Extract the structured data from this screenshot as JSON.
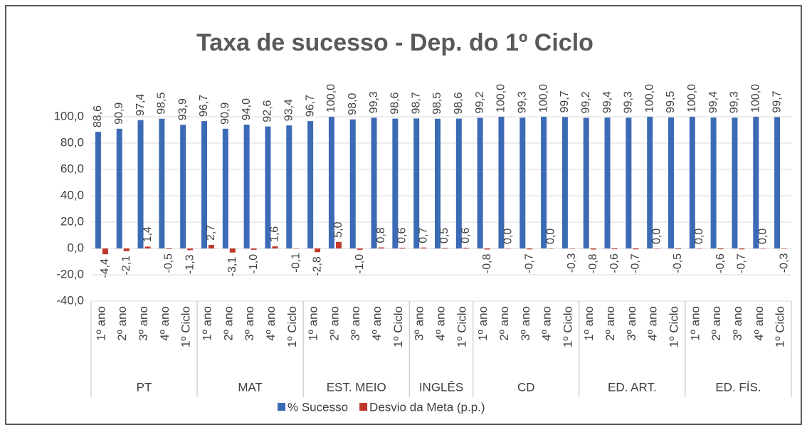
{
  "chart_data": {
    "type": "bar",
    "title": "Taxa de sucesso - Dep. do 1º Ciclo",
    "groups": [
      {
        "name": "PT",
        "categories": [
          "1º ano",
          "2º ano",
          "3º ano",
          "4º ano",
          "1º Ciclo"
        ]
      },
      {
        "name": "MAT",
        "categories": [
          "1º ano",
          "2º ano",
          "3º ano",
          "4º ano",
          "1º Ciclo"
        ]
      },
      {
        "name": "EST. MEIO",
        "categories": [
          "1º ano",
          "2º ano",
          "3º ano",
          "4º ano",
          "1º Ciclo"
        ]
      },
      {
        "name": "INGLÊS",
        "categories": [
          "3º ano",
          "4º ano",
          "1º Ciclo"
        ]
      },
      {
        "name": "CD",
        "categories": [
          "1º ano",
          "2º ano",
          "3º ano",
          "4º ano",
          "1º Ciclo"
        ]
      },
      {
        "name": "ED. ART.",
        "categories": [
          "1º ano",
          "2º ano",
          "3º ano",
          "4º ano",
          "1º Ciclo"
        ]
      },
      {
        "name": "ED. FÍS.",
        "categories": [
          "1º ano",
          "2º ano",
          "3º ano",
          "4º ano",
          "1º Ciclo"
        ]
      }
    ],
    "series": [
      {
        "name": "% Sucesso",
        "color": "#3c6bb5",
        "values": [
          88.6,
          90.9,
          97.4,
          98.5,
          93.9,
          96.7,
          90.9,
          94.0,
          92.6,
          93.4,
          96.7,
          100.0,
          98.0,
          99.3,
          98.6,
          98.7,
          98.5,
          98.6,
          99.2,
          100.0,
          99.3,
          100.0,
          99.7,
          99.2,
          99.4,
          99.3,
          100.0,
          99.5,
          100.0,
          99.4,
          99.3,
          100.0,
          99.7
        ],
        "value_labels": [
          "88,6",
          "90,9",
          "97,4",
          "98,5",
          "93,9",
          "96,7",
          "90,9",
          "94,0",
          "92,6",
          "93,4",
          "96,7",
          "100,0",
          "98,0",
          "99,3",
          "98,6",
          "98,7",
          "98,5",
          "98,6",
          "99,2",
          "100,0",
          "99,3",
          "100,0",
          "99,7",
          "99,2",
          "99,4",
          "99,3",
          "100,0",
          "99,5",
          "100,0",
          "99,4",
          "99,3",
          "100,0",
          "99,7"
        ]
      },
      {
        "name": "Desvio da Meta (p.p.)",
        "color": "#c0392b",
        "values": [
          -4.4,
          -2.1,
          1.4,
          -0.5,
          -1.3,
          2.7,
          -3.1,
          -1.0,
          1.6,
          -0.1,
          -2.8,
          5.0,
          -1.0,
          0.8,
          0.6,
          0.7,
          0.5,
          0.6,
          -0.8,
          0.0,
          -0.7,
          0.0,
          -0.3,
          -0.8,
          -0.6,
          -0.7,
          0.0,
          -0.5,
          0.0,
          -0.6,
          -0.7,
          0.0,
          -0.3
        ],
        "value_labels": [
          "-4,4",
          "-2,1",
          "1,4",
          "-0,5",
          "-1,3",
          "2,7",
          "-3,1",
          "-1,0",
          "1,6",
          "-0,1",
          "-2,8",
          "5,0",
          "-1,0",
          "0,8",
          "0,6",
          "0,7",
          "0,5",
          "0,6",
          "-0,8",
          "0,0",
          "-0,7",
          "0,0",
          "-0,3",
          "-0,8",
          "-0,6",
          "-0,7",
          "0,0",
          "-0,5",
          "0,0",
          "-0,6",
          "-0,7",
          "0,0",
          "-0,3"
        ]
      }
    ],
    "ylim": [
      -40,
      100
    ],
    "yticks": [
      {
        "value": -40,
        "label": "-40,0"
      },
      {
        "value": -20,
        "label": "-20,0"
      },
      {
        "value": 0,
        "label": "0,0"
      },
      {
        "value": 20,
        "label": "20,0"
      },
      {
        "value": 40,
        "label": "40,0"
      },
      {
        "value": 60,
        "label": "60,0"
      },
      {
        "value": 80,
        "label": "80,0"
      },
      {
        "value": 100,
        "label": "100,0"
      }
    ],
    "grid": true,
    "legend": "bottom"
  }
}
